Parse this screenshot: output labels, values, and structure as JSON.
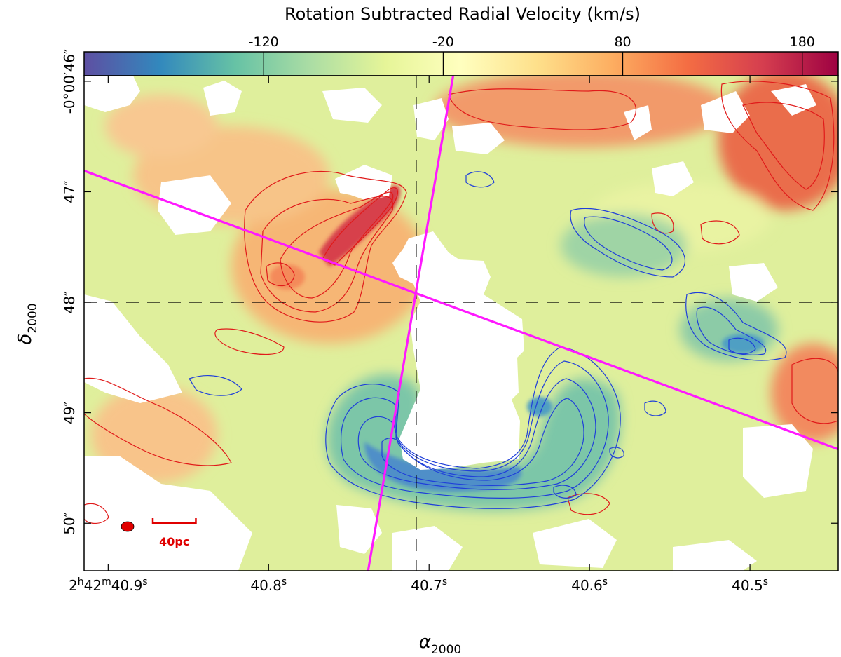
{
  "chart_data": {
    "type": "heatmap",
    "title": "Rotation Subtracted Radial Velocity (km/s)",
    "colorbar": {
      "ticks": [
        "-120",
        "-20",
        "80",
        "180"
      ],
      "tick_values": [
        -120,
        -20,
        80,
        180
      ],
      "range": [
        -220,
        200
      ],
      "colormap": "Spectral_r",
      "stops": [
        "#5e4fa2",
        "#3288bd",
        "#66c2a5",
        "#abdda4",
        "#e6f598",
        "#ffffbf",
        "#fee08b",
        "#fdae61",
        "#f46d43",
        "#d53e4f",
        "#9e0142"
      ]
    },
    "xlabel_base": "α",
    "xlabel_sub": "2000",
    "ylabel_base": "δ",
    "ylabel_sub": "2000",
    "x_ticks": [
      {
        "pre": "2",
        "h": "h",
        "mid": "42",
        "m": "m",
        "val": "40.9",
        "s": "s",
        "ra": 40.9
      },
      {
        "pre": "",
        "h": "",
        "mid": "",
        "m": "",
        "val": "40.8",
        "s": "s",
        "ra": 40.8
      },
      {
        "pre": "",
        "h": "",
        "mid": "",
        "m": "",
        "val": "40.7",
        "s": "s",
        "ra": 40.7
      },
      {
        "pre": "",
        "h": "",
        "mid": "",
        "m": "",
        "val": "40.6",
        "s": "s",
        "ra": 40.6
      },
      {
        "pre": "",
        "h": "",
        "mid": "",
        "m": "",
        "val": "40.5",
        "s": "s",
        "ra": 40.5
      }
    ],
    "y_ticks": [
      {
        "label": "-0°00′46″",
        "dec": 46
      },
      {
        "label": "47″",
        "dec": 47
      },
      {
        "label": "48″",
        "dec": 48
      },
      {
        "label": "49″",
        "dec": 49
      },
      {
        "label": "50″",
        "dec": 50
      }
    ],
    "xlim_ra_s": [
      40.915,
      40.445
    ],
    "ylim_dec_arcsec": [
      50.43,
      45.95
    ],
    "center": {
      "ra_s": 40.708,
      "dec_arcsec": 48.0
    },
    "slit_lines": [
      {
        "ra1": 40.915,
        "dec1": 46.81,
        "ra2": 40.445,
        "dec2": 49.33
      },
      {
        "ra1": 40.685,
        "dec1": 45.95,
        "ra2": 40.738,
        "dec2": 50.43
      }
    ],
    "scale_bar": {
      "label": "40pc",
      "length_arcsec": 0.39
    },
    "features": [
      {
        "name": "redshifted-ridge",
        "v_kms": 160,
        "ra_s": 40.762,
        "dec_arcsec": 47.5
      },
      {
        "name": "redshifted-lobe-west",
        "v_kms": 90,
        "ra_s": 40.785,
        "dec_arcsec": 47.75
      },
      {
        "name": "blueshifted-arc-south",
        "v_kms": -140,
        "ra_s": 40.665,
        "dec_arcsec": 49.55
      },
      {
        "name": "blueshifted-clump-east",
        "v_kms": -120,
        "ra_s": 40.505,
        "dec_arcsec": 48.5
      },
      {
        "name": "blueshifted-band-east",
        "v_kms": -70,
        "ra_s": 40.58,
        "dec_arcsec": 47.4
      },
      {
        "name": "redshifted-ne-corner",
        "v_kms": 110,
        "ra_s": 40.47,
        "dec_arcsec": 46.3
      },
      {
        "name": "redshifted-nw",
        "v_kms": 60,
        "ra_s": 40.85,
        "dec_arcsec": 46.3
      },
      {
        "name": "redshifted-w-edge",
        "v_kms": 70,
        "ra_s": 40.89,
        "dec_arcsec": 49.2
      }
    ]
  },
  "colors": {
    "slit": "#ff19ff",
    "red_contour": "#e01a1a",
    "blue_contour": "#1f3fd9",
    "marker": "#e00000",
    "crosshair": "#000000"
  }
}
